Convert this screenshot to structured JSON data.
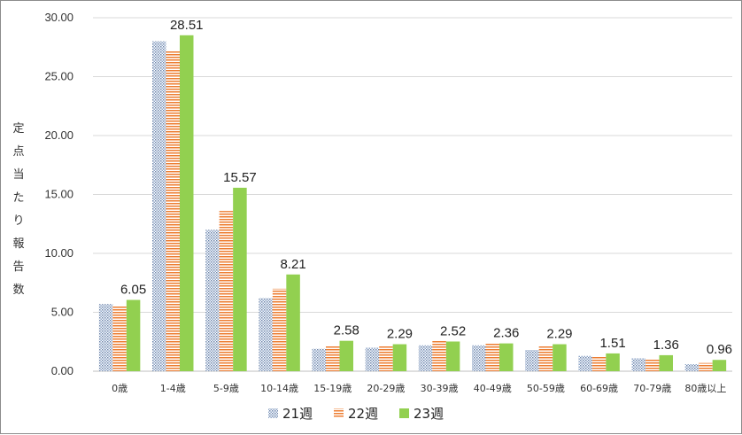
{
  "chart_data": {
    "type": "bar",
    "title": "",
    "xlabel": "",
    "ylabel": "定点当たり報告数",
    "ylim": [
      0,
      30
    ],
    "yticks": [
      "0.00",
      "5.00",
      "10.00",
      "15.00",
      "20.00",
      "25.00",
      "30.00"
    ],
    "grid": true,
    "legend_position": "bottom",
    "categories": [
      "0歳",
      "1-4歳",
      "5-9歳",
      "10-14歳",
      "15-19歳",
      "20-29歳",
      "30-39歳",
      "40-49歳",
      "50-59歳",
      "60-69歳",
      "70-79歳",
      "80歳以上"
    ],
    "series": [
      {
        "name": "21週",
        "pattern": "dots",
        "color": "#8ea6c8",
        "values": [
          5.7,
          28.0,
          12.0,
          6.2,
          1.9,
          2.0,
          2.2,
          2.2,
          1.8,
          1.3,
          1.1,
          0.6
        ]
      },
      {
        "name": "22週",
        "pattern": "stripes",
        "color": "#ed7d31",
        "values": [
          5.5,
          27.2,
          13.6,
          7.0,
          2.2,
          2.2,
          2.6,
          2.4,
          2.2,
          1.3,
          1.0,
          0.7
        ]
      },
      {
        "name": "23週",
        "pattern": "solid",
        "color": "#92d050",
        "values": [
          6.05,
          28.51,
          15.57,
          8.21,
          2.58,
          2.29,
          2.52,
          2.36,
          2.29,
          1.51,
          1.36,
          0.96
        ],
        "labels": [
          "6.05",
          "28.51",
          "15.57",
          "8.21",
          "2.58",
          "2.29",
          "2.52",
          "2.36",
          "2.29",
          "1.51",
          "1.36",
          "0.96"
        ]
      }
    ]
  }
}
